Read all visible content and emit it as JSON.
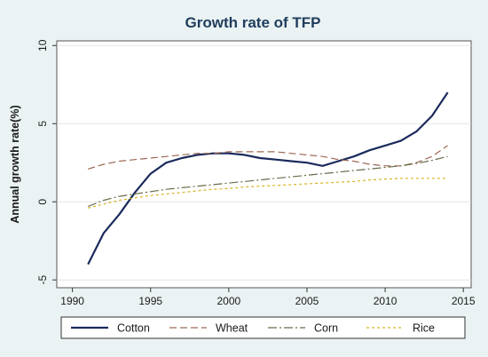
{
  "chart_data": {
    "type": "line",
    "title": "Growth rate of TFP",
    "xlabel": "",
    "ylabel": "Annual growth rate(%)",
    "xlim": [
      1989,
      2015.5
    ],
    "ylim": [
      -5.5,
      10.3
    ],
    "x_ticks": [
      "1990",
      "1995",
      "2000",
      "2005",
      "2010",
      "2015"
    ],
    "y_ticks": [
      "-5",
      "0",
      "5",
      "10"
    ],
    "grid": "horizontal",
    "legend_position": "bottom",
    "series": [
      {
        "name": "Cotton",
        "color": "#1a2a5c",
        "dash": "solid",
        "x": [
          1991,
          1992,
          1993,
          1994,
          1995,
          1996,
          1997,
          1998,
          1999,
          2000,
          2001,
          2002,
          2003,
          2004,
          2005,
          2006,
          2007,
          2008,
          2009,
          2010,
          2011,
          2012,
          2013,
          2014
        ],
        "values": [
          -4.0,
          -2.0,
          -0.8,
          0.6,
          1.8,
          2.5,
          2.8,
          3.0,
          3.1,
          3.1,
          3.0,
          2.8,
          2.7,
          2.6,
          2.5,
          2.3,
          2.6,
          2.9,
          3.3,
          3.6,
          3.9,
          4.5,
          5.5,
          7.0
        ]
      },
      {
        "name": "Wheat",
        "color": "#9b6a55",
        "dash": "dashed",
        "x": [
          1991,
          1992,
          1993,
          1994,
          1995,
          1996,
          1997,
          1998,
          1999,
          2000,
          2001,
          2002,
          2003,
          2004,
          2005,
          2006,
          2007,
          2008,
          2009,
          2010,
          2011,
          2012,
          2013,
          2014
        ],
        "values": [
          2.1,
          2.4,
          2.6,
          2.7,
          2.8,
          2.9,
          3.0,
          3.1,
          3.1,
          3.2,
          3.2,
          3.2,
          3.2,
          3.1,
          3.0,
          2.9,
          2.7,
          2.6,
          2.4,
          2.3,
          2.3,
          2.5,
          2.9,
          3.6
        ]
      },
      {
        "name": "Corn",
        "color": "#6b6b4a",
        "dash": "dashdot",
        "x": [
          1991,
          1992,
          1993,
          1994,
          1995,
          1996,
          1997,
          1998,
          1999,
          2000,
          2001,
          2002,
          2003,
          2004,
          2005,
          2006,
          2007,
          2008,
          2009,
          2010,
          2011,
          2012,
          2013,
          2014
        ],
        "values": [
          -0.3,
          0.1,
          0.35,
          0.5,
          0.65,
          0.8,
          0.9,
          1.0,
          1.1,
          1.2,
          1.3,
          1.4,
          1.5,
          1.6,
          1.7,
          1.8,
          1.9,
          2.0,
          2.1,
          2.2,
          2.3,
          2.45,
          2.65,
          2.9
        ]
      },
      {
        "name": "Rice",
        "color": "#d8b320",
        "dash": "dotted",
        "x": [
          1991,
          1992,
          1993,
          1994,
          1995,
          1996,
          1997,
          1998,
          1999,
          2000,
          2001,
          2002,
          2003,
          2004,
          2005,
          2006,
          2007,
          2008,
          2009,
          2010,
          2011,
          2012,
          2013,
          2014
        ],
        "values": [
          -0.4,
          -0.15,
          0.1,
          0.25,
          0.4,
          0.5,
          0.6,
          0.7,
          0.8,
          0.85,
          0.95,
          1.0,
          1.05,
          1.1,
          1.15,
          1.2,
          1.25,
          1.3,
          1.4,
          1.45,
          1.5,
          1.5,
          1.5,
          1.5
        ]
      }
    ]
  }
}
